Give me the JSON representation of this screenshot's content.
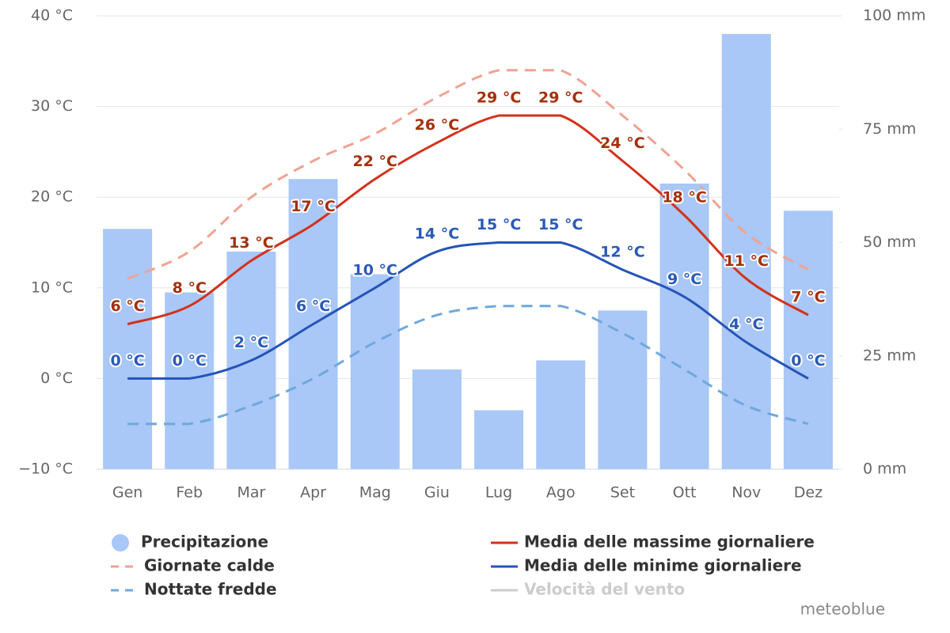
{
  "chart_data": {
    "type": "combo",
    "categories": [
      "Gen",
      "Feb",
      "Mar",
      "Apr",
      "Mag",
      "Giu",
      "Lug",
      "Ago",
      "Set",
      "Ott",
      "Nov",
      "Dez"
    ],
    "ylim": [
      -10,
      40
    ],
    "yticks": [
      {
        "value": -10,
        "label": "−10 °C"
      },
      {
        "value": 0,
        "label": "0 °C"
      },
      {
        "value": 10,
        "label": "10 °C"
      },
      {
        "value": 20,
        "label": "20 °C"
      },
      {
        "value": 30,
        "label": "30 °C"
      },
      {
        "value": 40,
        "label": "40 °C"
      }
    ],
    "y2lim": [
      0,
      100
    ],
    "y2ticks": [
      {
        "value": 0,
        "label": "0 mm"
      },
      {
        "value": 25,
        "label": "25 mm"
      },
      {
        "value": 50,
        "label": "50 mm"
      },
      {
        "value": 75,
        "label": "75 mm"
      },
      {
        "value": 100,
        "label": "100 mm"
      }
    ],
    "grid": true,
    "series": [
      {
        "name": "Precipitazione",
        "type": "bar",
        "axis": "y2",
        "color": "#a9c7f7",
        "values": [
          53,
          39,
          48,
          64,
          43,
          22,
          13,
          24,
          35,
          63,
          96,
          57
        ]
      },
      {
        "name": "Media delle massime giornaliere",
        "type": "line",
        "color": "#d4311a",
        "label_color": "#a3300c",
        "values": [
          6,
          8,
          13,
          17,
          22,
          26,
          29,
          29,
          24,
          18,
          11,
          7
        ],
        "value_labels": [
          "6 °C",
          "8 °C",
          "13 °C",
          "17 °C",
          "22 °C",
          "26 °C",
          "29 °C",
          "29 °C",
          "24 °C",
          "18 °C",
          "11 °C",
          "7 °C"
        ]
      },
      {
        "name": "Giornate calde",
        "type": "line",
        "dashed": true,
        "color": "#f0a392",
        "values": [
          11,
          14,
          20,
          24,
          27,
          31,
          34,
          34,
          29,
          23,
          16,
          12
        ]
      },
      {
        "name": "Media delle minime giornaliere",
        "type": "line",
        "color": "#2454b8",
        "label_color": "#2a5ab8",
        "values": [
          0,
          0,
          2,
          6,
          10,
          14,
          15,
          15,
          12,
          9,
          4,
          0
        ],
        "value_labels": [
          "0 °C",
          "0 °C",
          "2 °C",
          "6 °C",
          "10 °C",
          "14 °C",
          "15 °C",
          "15 °C",
          "12 °C",
          "9 °C",
          "4 °C",
          "0 °C"
        ]
      },
      {
        "name": "Nottate fredde",
        "type": "line",
        "dashed": true,
        "color": "#6fa8dc",
        "values": [
          -5,
          -5,
          -3,
          0,
          4,
          7,
          8,
          8,
          5,
          1,
          -3,
          -5
        ]
      }
    ],
    "legend_only": [
      {
        "name": "Velocità del vento",
        "color": "#cccccc"
      }
    ],
    "credit": "meteoblue"
  }
}
